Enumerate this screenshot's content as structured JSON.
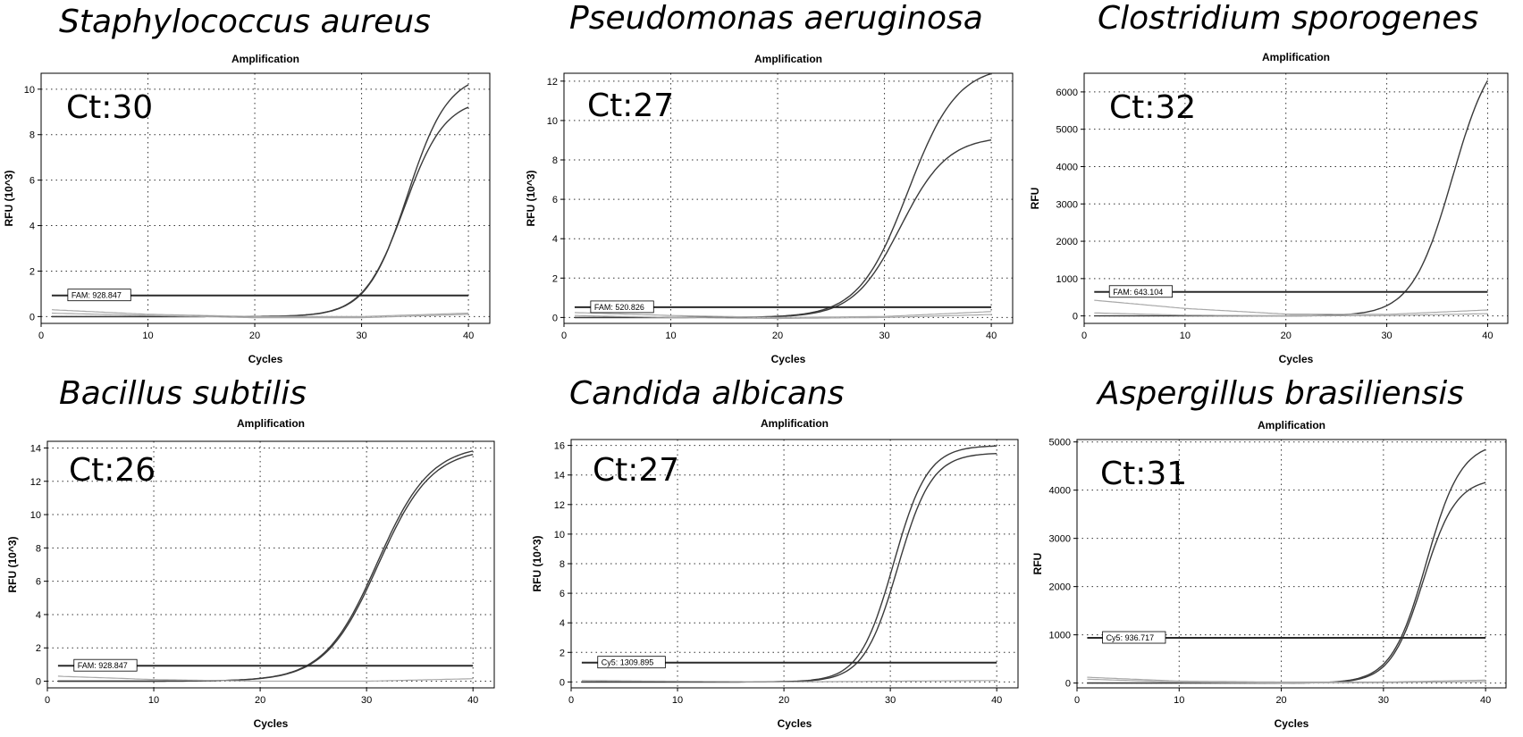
{
  "chart_data": [
    {
      "type": "line",
      "organism": "Staphylococcus aureus",
      "title": "Amplification",
      "xlabel": "Cycles",
      "ylabel": "RFU (10^3)",
      "ct_label": "Ct:30",
      "xlim": [
        0,
        42
      ],
      "ylim": [
        -0.3,
        10.7
      ],
      "xticks": [
        0,
        10,
        20,
        30,
        40
      ],
      "yticks": [
        0,
        2,
        4,
        6,
        8,
        10
      ],
      "threshold": {
        "label": "FAM: 928.847",
        "value": 0.93
      },
      "series": [
        {
          "name": "sample-1",
          "kind": "sigmoid",
          "base": 0.0,
          "plateau": 10.7,
          "midpoint": 34.3,
          "slope": 1.9,
          "color": "#3a3a3a"
        },
        {
          "name": "sample-2",
          "kind": "sigmoid",
          "base": 0.0,
          "plateau": 9.6,
          "midpoint": 34.0,
          "slope": 1.9,
          "color": "#3a3a3a"
        },
        {
          "name": "negative-1",
          "kind": "flat",
          "points": [
            [
              1,
              0.3
            ],
            [
              10,
              0.1
            ],
            [
              20,
              0.0
            ],
            [
              30,
              0.0
            ],
            [
              40,
              0.15
            ]
          ],
          "color": "#a8a8a8"
        },
        {
          "name": "negative-2",
          "kind": "flat",
          "points": [
            [
              1,
              0.15
            ],
            [
              10,
              0.05
            ],
            [
              20,
              -0.05
            ],
            [
              30,
              -0.05
            ],
            [
              40,
              0.1
            ]
          ],
          "color": "#a8a8a8"
        }
      ]
    },
    {
      "type": "line",
      "organism": "Pseudomonas aeruginosa",
      "title": "Amplification",
      "xlabel": "Cycles",
      "ylabel": "RFU (10^3)",
      "ct_label": "Ct:27",
      "xlim": [
        0,
        42
      ],
      "ylim": [
        -0.3,
        12.4
      ],
      "xticks": [
        0,
        10,
        20,
        30,
        40
      ],
      "yticks": [
        0,
        2,
        4,
        6,
        8,
        10,
        12
      ],
      "threshold": {
        "label": "FAM: 520.826",
        "value": 0.52
      },
      "series": [
        {
          "name": "sample-1",
          "kind": "sigmoid",
          "base": 0.0,
          "plateau": 12.8,
          "midpoint": 32.2,
          "slope": 2.3,
          "color": "#3a3a3a"
        },
        {
          "name": "sample-2",
          "kind": "sigmoid",
          "base": 0.0,
          "plateau": 9.2,
          "midpoint": 31.5,
          "slope": 2.2,
          "color": "#3a3a3a"
        },
        {
          "name": "negative-1",
          "kind": "flat",
          "points": [
            [
              1,
              0.25
            ],
            [
              10,
              0.1
            ],
            [
              20,
              0.0
            ],
            [
              30,
              0.05
            ],
            [
              40,
              0.3
            ]
          ],
          "color": "#a8a8a8"
        },
        {
          "name": "negative-2",
          "kind": "flat",
          "points": [
            [
              1,
              0.1
            ],
            [
              10,
              0.0
            ],
            [
              20,
              -0.05
            ],
            [
              30,
              0.0
            ],
            [
              40,
              0.15
            ]
          ],
          "color": "#a8a8a8"
        }
      ]
    },
    {
      "type": "line",
      "organism": "Clostridium sporogenes",
      "title": "Amplification",
      "xlabel": "Cycles",
      "ylabel": "RFU",
      "ct_label": "Ct:32",
      "xlim": [
        0,
        42
      ],
      "ylim": [
        -200,
        6500
      ],
      "xticks": [
        0,
        10,
        20,
        30,
        40
      ],
      "yticks": [
        0,
        1000,
        2000,
        3000,
        4000,
        5000,
        6000
      ],
      "threshold": {
        "label": "FAM: 643.104",
        "value": 643
      },
      "series": [
        {
          "name": "sample-1",
          "kind": "sigmoid",
          "base": 0,
          "plateau": 7400,
          "midpoint": 36.5,
          "slope": 2.0,
          "color": "#3a3a3a"
        },
        {
          "name": "negative-1",
          "kind": "flat",
          "points": [
            [
              1,
              420
            ],
            [
              10,
              200
            ],
            [
              20,
              50
            ],
            [
              30,
              40
            ],
            [
              40,
              160
            ]
          ],
          "color": "#a8a8a8"
        },
        {
          "name": "negative-2",
          "kind": "flat",
          "points": [
            [
              1,
              80
            ],
            [
              10,
              20
            ],
            [
              20,
              0
            ],
            [
              30,
              10
            ],
            [
              40,
              60
            ]
          ],
          "color": "#a8a8a8"
        }
      ]
    },
    {
      "type": "line",
      "organism": "Bacillus subtilis",
      "title": "Amplification",
      "xlabel": "Cycles",
      "ylabel": "RFU (10^3)",
      "ct_label": "Ct:26",
      "xlim": [
        0,
        42
      ],
      "ylim": [
        -0.4,
        14.4
      ],
      "xticks": [
        0,
        10,
        20,
        30,
        40
      ],
      "yticks": [
        0,
        2,
        4,
        6,
        8,
        10,
        12,
        14
      ],
      "threshold": {
        "label": "FAM: 928.847",
        "value": 0.93
      },
      "series": [
        {
          "name": "sample-1",
          "kind": "sigmoid",
          "base": 0.0,
          "plateau": 14.2,
          "midpoint": 31.0,
          "slope": 2.5,
          "color": "#3a3a3a"
        },
        {
          "name": "sample-2",
          "kind": "sigmoid",
          "base": 0.0,
          "plateau": 14.0,
          "midpoint": 31.1,
          "slope": 2.5,
          "color": "#3a3a3a"
        },
        {
          "name": "negative-1",
          "kind": "flat",
          "points": [
            [
              1,
              0.3
            ],
            [
              10,
              0.1
            ],
            [
              20,
              0.0
            ],
            [
              30,
              0.0
            ],
            [
              40,
              0.15
            ]
          ],
          "color": "#a8a8a8"
        }
      ]
    },
    {
      "type": "line",
      "organism": "Candida albicans",
      "title": "Amplification",
      "xlabel": "Cycles",
      "ylabel": "RFU (10^3)",
      "ct_label": "Ct:27",
      "xlim": [
        0,
        42
      ],
      "ylim": [
        -0.4,
        16.4
      ],
      "xticks": [
        0,
        10,
        20,
        30,
        40
      ],
      "yticks": [
        0,
        2,
        4,
        6,
        8,
        10,
        12,
        14,
        16
      ],
      "threshold": {
        "label": "Cy5: 1309.895",
        "value": 1.31
      },
      "series": [
        {
          "name": "sample-1",
          "kind": "sigmoid",
          "base": 0.0,
          "plateau": 16.0,
          "midpoint": 30.3,
          "slope": 1.6,
          "color": "#3a3a3a"
        },
        {
          "name": "sample-2",
          "kind": "sigmoid",
          "base": 0.0,
          "plateau": 15.5,
          "midpoint": 30.7,
          "slope": 1.6,
          "color": "#3a3a3a"
        },
        {
          "name": "negative-1",
          "kind": "flat",
          "points": [
            [
              1,
              0.1
            ],
            [
              10,
              0.05
            ],
            [
              20,
              0.0
            ],
            [
              30,
              0.05
            ],
            [
              40,
              0.1
            ]
          ],
          "color": "#a8a8a8"
        }
      ]
    },
    {
      "type": "line",
      "organism": "Aspergillus brasiliensis",
      "title": "Amplification",
      "xlabel": "Cycles",
      "ylabel": "RFU",
      "ct_label": "Ct:31",
      "xlim": [
        0,
        42
      ],
      "ylim": [
        -100,
        5050
      ],
      "xticks": [
        0,
        10,
        20,
        30,
        40
      ],
      "yticks": [
        0,
        1000,
        2000,
        3000,
        4000,
        5000
      ],
      "threshold": {
        "label": "Cy5: 936.717",
        "value": 937
      },
      "series": [
        {
          "name": "sample-1",
          "kind": "sigmoid",
          "base": 0,
          "plateau": 5000,
          "midpoint": 34.2,
          "slope": 1.7,
          "color": "#3a3a3a"
        },
        {
          "name": "sample-2",
          "kind": "sigmoid",
          "base": 0,
          "plateau": 4250,
          "midpoint": 33.9,
          "slope": 1.6,
          "color": "#3a3a3a"
        },
        {
          "name": "negative-1",
          "kind": "flat",
          "points": [
            [
              1,
              120
            ],
            [
              10,
              40
            ],
            [
              20,
              20
            ],
            [
              30,
              20
            ],
            [
              40,
              60
            ]
          ],
          "color": "#a8a8a8"
        },
        {
          "name": "negative-2",
          "kind": "flat",
          "points": [
            [
              1,
              80
            ],
            [
              10,
              20
            ],
            [
              20,
              0
            ],
            [
              30,
              10
            ],
            [
              40,
              30
            ]
          ],
          "color": "#a8a8a8"
        }
      ]
    }
  ],
  "colors": {
    "threshold_line": "#2a2a2a",
    "frame": "#000000"
  }
}
